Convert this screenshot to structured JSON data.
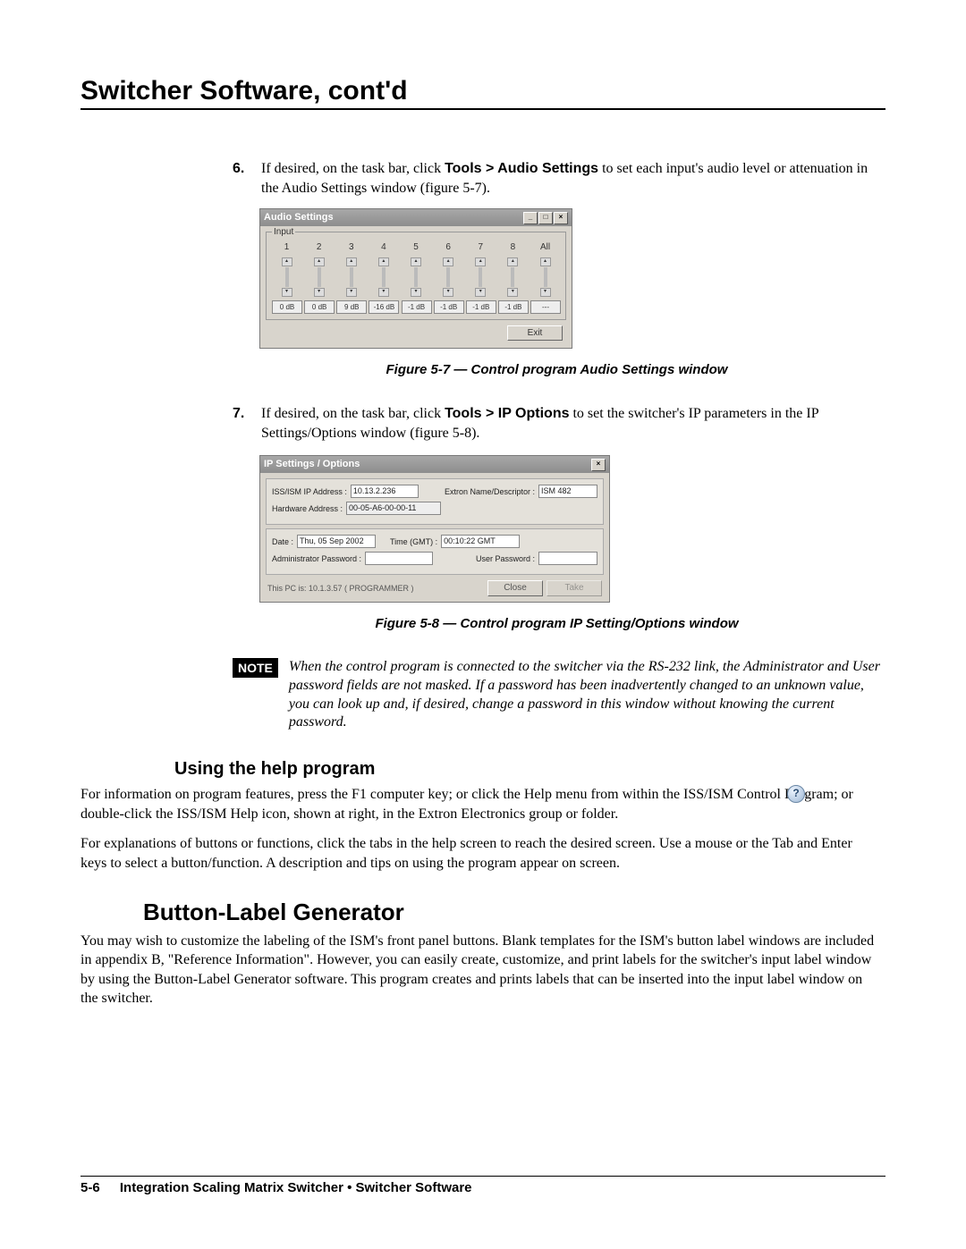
{
  "page_title": "Switcher Software, cont'd",
  "step6": {
    "num": "6.",
    "text_pre": "If desired, on the task bar, click ",
    "bold": "Tools > Audio Settings",
    "text_post": " to set each input's audio level or attenuation in the Audio Settings window (figure 5-7)."
  },
  "audio_win": {
    "title": "Audio Settings",
    "group": "Input",
    "channels": [
      "1",
      "2",
      "3",
      "4",
      "5",
      "6",
      "7",
      "8",
      "All"
    ],
    "db": [
      "0 dB",
      "0 dB",
      "9 dB",
      "-16 dB",
      "-1 dB",
      "-1 dB",
      "-1 dB",
      "-1 dB",
      "---"
    ],
    "exit": "Exit"
  },
  "caption1": "Figure 5-7 — Control program Audio Settings window",
  "step7": {
    "num": "7.",
    "text_pre": "If desired, on the task bar, click ",
    "bold": "Tools > IP Options",
    "text_post": " to set the switcher's IP parameters in the IP Settings/Options window (figure 5-8)."
  },
  "ip_win": {
    "title": "IP Settings / Options",
    "ip_lbl": "ISS/ISM IP Address :",
    "ip_val": "10.13.2.236",
    "name_lbl": "Extron Name/Descriptor :",
    "name_val": "ISM 482",
    "hw_lbl": "Hardware Address :",
    "hw_val": "00-05-A6-00-00-11",
    "date_lbl": "Date :",
    "date_val": "Thu, 05 Sep 2002",
    "time_lbl": "Time (GMT) :",
    "time_val": "00:10:22 GMT",
    "admin_lbl": "Administrator Password :",
    "user_lbl": "User Password :",
    "status": "This PC is:  10.1.3.57   ( PROGRAMMER )",
    "close": "Close",
    "take": "Take"
  },
  "caption2": "Figure 5-8 — Control program IP Setting/Options window",
  "note_label": "NOTE",
  "note_text": "When the control program is connected to the switcher via the RS-232 link, the Administrator and User password fields are not masked.  If a password has been inadvertently changed to an unknown value, you can look up and, if desired, change a password in this window without knowing the current password.",
  "h2_help": "Using the help program",
  "help_para1": "For information on program features, press the F1 computer key; or click the Help menu from within the ISS/ISM Control Program; or double-click the ISS/ISM Help icon, shown at right, in the Extron Electronics group or folder.",
  "help_para2": "For explanations of buttons or functions, click the tabs in the help screen to reach the desired screen.  Use a mouse or the Tab and Enter keys to select a button/function.  A description and tips on using the program appear on screen.",
  "h1_blg": "Button-Label Generator",
  "blg_para": "You may wish to customize the labeling of the ISM's front panel buttons.  Blank templates for the ISM's button label windows are included in appendix B, \"Reference Information\".  However, you can easily create, customize, and print labels for the switcher's input label window by using the Button-Label Generator software.  This program creates and prints labels that can be inserted into the input label window on the switcher.",
  "footer_page": "5-6",
  "footer_text": "Integration Scaling Matrix Switcher • Switcher Software"
}
